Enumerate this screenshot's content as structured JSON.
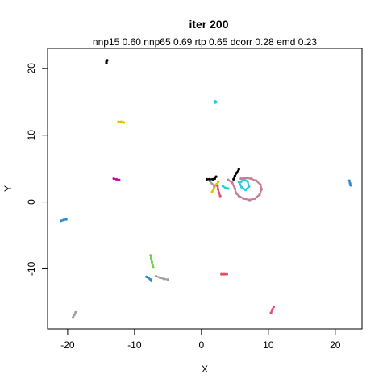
{
  "chart_data": {
    "type": "scatter",
    "title": "iter 200",
    "subtitle": "nnp15 0.60 nnp65 0.69 rtp 0.65 dcorr 0.28 emd 0.23",
    "xlabel": "X",
    "ylabel": "Y",
    "xlim": [
      -23,
      24
    ],
    "ylim": [
      -19,
      23
    ],
    "x_ticks": [
      -20,
      -10,
      0,
      10,
      20
    ],
    "y_ticks": [
      20,
      10,
      0,
      -10
    ],
    "x_tick_labels": [
      "-20",
      "-10",
      "0",
      "10",
      "20"
    ],
    "y_tick_labels": [
      "20",
      "10",
      "0",
      "-10"
    ],
    "grid": false,
    "legend": "none",
    "series": [
      {
        "color": "#000000",
        "points": [
          [
            -14.2,
            21.0
          ],
          [
            -14.1,
            21.2
          ],
          [
            -14.2,
            20.8
          ]
        ]
      },
      {
        "color": "#000000",
        "points": [
          [
            0.8,
            3.4
          ],
          [
            1.2,
            3.4
          ],
          [
            1.7,
            3.4
          ],
          [
            2.0,
            3.5
          ],
          [
            2.2,
            3.8
          ]
        ]
      },
      {
        "color": "#000000",
        "points": [
          [
            4.8,
            3.4
          ],
          [
            5.0,
            3.9
          ],
          [
            5.3,
            4.4
          ],
          [
            5.6,
            4.9
          ]
        ]
      },
      {
        "color": "#1fd0d8",
        "points": [
          [
            2.0,
            15.1
          ],
          [
            2.1,
            14.9
          ],
          [
            2.2,
            15.0
          ]
        ]
      },
      {
        "color": "#1fd0d8",
        "points": [
          [
            5.6,
            3.0
          ],
          [
            6.0,
            2.2
          ],
          [
            6.6,
            1.8
          ],
          [
            7.1,
            2.3
          ],
          [
            6.9,
            3.1
          ],
          [
            6.3,
            3.4
          ],
          [
            5.9,
            3.0
          ]
        ]
      },
      {
        "color": "#1fd0d8",
        "points": [
          [
            3.2,
            2.4
          ],
          [
            3.6,
            2.1
          ],
          [
            4.0,
            2.0
          ]
        ]
      },
      {
        "color": "#e6c100",
        "points": [
          [
            -12.4,
            12.0
          ],
          [
            -12.0,
            12.0
          ],
          [
            -11.6,
            11.9
          ]
        ]
      },
      {
        "color": "#e6c100",
        "points": [
          [
            1.6,
            1.5
          ],
          [
            1.9,
            2.1
          ],
          [
            2.2,
            2.6
          ],
          [
            2.5,
            3.0
          ]
        ]
      },
      {
        "color": "#c40fa8",
        "points": [
          [
            -13.1,
            3.5
          ],
          [
            -12.7,
            3.4
          ],
          [
            -12.3,
            3.3
          ]
        ]
      },
      {
        "color": "#2a8ccc",
        "points": [
          [
            -21.0,
            -2.8
          ],
          [
            -20.6,
            -2.7
          ],
          [
            -20.2,
            -2.6
          ]
        ]
      },
      {
        "color": "#2a8ccc",
        "points": [
          [
            22.1,
            3.2
          ],
          [
            22.2,
            2.8
          ],
          [
            22.3,
            2.5
          ]
        ]
      },
      {
        "color": "#2a8ccc",
        "points": [
          [
            -8.2,
            -11.2
          ],
          [
            -7.9,
            -11.4
          ],
          [
            -7.6,
            -11.6
          ],
          [
            -7.5,
            -11.8
          ]
        ]
      },
      {
        "color": "#cc7a96",
        "points": [
          [
            4.0,
            3.3
          ],
          [
            4.6,
            2.9
          ],
          [
            5.0,
            2.0
          ],
          [
            5.2,
            1.3
          ],
          [
            5.6,
            0.9
          ],
          [
            6.3,
            0.5
          ],
          [
            7.2,
            0.3
          ],
          [
            8.0,
            0.5
          ],
          [
            8.7,
            1.1
          ],
          [
            9.0,
            1.9
          ],
          [
            8.8,
            2.6
          ],
          [
            8.2,
            3.2
          ],
          [
            7.4,
            3.5
          ],
          [
            6.6,
            3.6
          ],
          [
            5.9,
            3.5
          ]
        ]
      },
      {
        "color": "#e0506a",
        "points": [
          [
            2.8,
            0.9
          ],
          [
            2.6,
            1.4
          ],
          [
            2.5,
            1.9
          ],
          [
            2.4,
            2.4
          ]
        ]
      },
      {
        "color": "#e0506a",
        "points": [
          [
            3.0,
            -10.8
          ],
          [
            3.4,
            -10.8
          ],
          [
            3.8,
            -10.8
          ]
        ]
      },
      {
        "color": "#e0506a",
        "points": [
          [
            10.4,
            -16.6
          ],
          [
            10.6,
            -16.1
          ],
          [
            10.8,
            -15.7
          ]
        ]
      },
      {
        "color": "#6ed14a",
        "points": [
          [
            -7.6,
            -8.0
          ],
          [
            -7.5,
            -8.5
          ],
          [
            -7.4,
            -9.0
          ],
          [
            -7.3,
            -9.5
          ],
          [
            -7.2,
            -9.8
          ]
        ]
      },
      {
        "color": "#a0a0a0",
        "points": [
          [
            -6.8,
            -11.1
          ],
          [
            -6.2,
            -11.3
          ],
          [
            -5.6,
            -11.5
          ],
          [
            -5.0,
            -11.6
          ]
        ]
      },
      {
        "color": "#a0a0a0",
        "points": [
          [
            -19.2,
            -17.3
          ],
          [
            -19.0,
            -16.9
          ],
          [
            -18.8,
            -16.5
          ]
        ]
      },
      {
        "color": "#a0a0a0",
        "points": [
          [
            1.3,
            3.1
          ],
          [
            1.6,
            2.7
          ],
          [
            1.9,
            2.4
          ]
        ]
      }
    ]
  }
}
